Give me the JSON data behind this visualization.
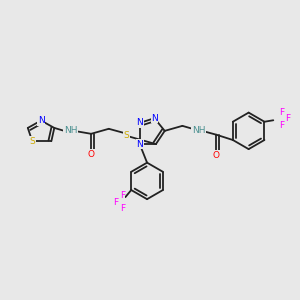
{
  "bg_color": "#e8e8e8",
  "bond_color": "#222222",
  "bond_width": 1.3,
  "N_color": "#0000ff",
  "S_color": "#ccaa00",
  "O_color": "#ff0000",
  "F_color": "#ff00ff",
  "H_color": "#4a9090",
  "figsize": [
    3.0,
    3.0
  ],
  "dpi": 100,
  "xlim": [
    0,
    10
  ],
  "ylim": [
    0,
    10
  ]
}
